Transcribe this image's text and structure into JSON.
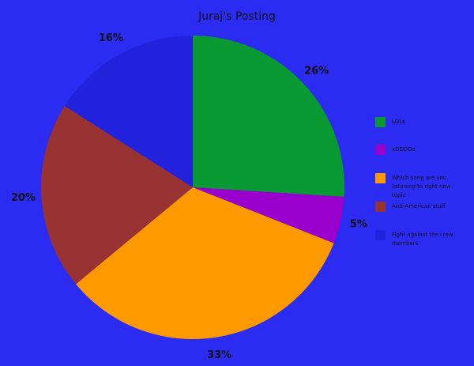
{
  "chart_data": {
    "type": "pie",
    "title": "Juraj's Posting",
    "categories": [
      "LOLs",
      "xDDDDs",
      "Which song are you listening to right now topic",
      "Anti-American stuff",
      "Fight against the crew members"
    ],
    "values": [
      26,
      5,
      33,
      20,
      16
    ],
    "value_labels": [
      "26%",
      "5%",
      "33%",
      "20%",
      "16%"
    ],
    "colors": [
      "#0a9a33",
      "#9900cc",
      "#ff9900",
      "#993333",
      "#2222dd"
    ]
  }
}
